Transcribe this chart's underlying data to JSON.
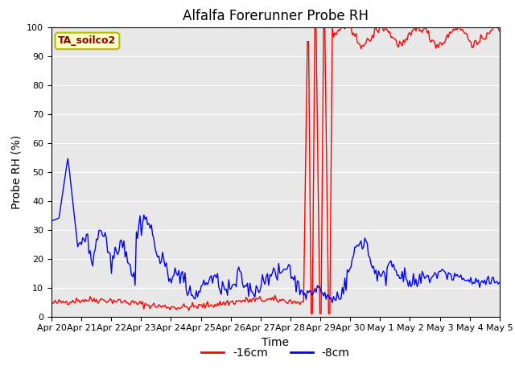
{
  "title": "Alfalfa Forerunner Probe RH",
  "xlabel": "Time",
  "ylabel": "Probe RH (%)",
  "ylim": [
    0,
    100
  ],
  "bg_color": "#e8e8e8",
  "fig_color": "#ffffff",
  "legend_label": "TA_soilco2",
  "series": [
    {
      "label": "-16cm",
      "color": "#ff0000"
    },
    {
      "label": "-8cm",
      "color": "#0000ff"
    }
  ],
  "xtick_labels": [
    "Apr 20",
    "Apr 21",
    "Apr 22",
    "Apr 23",
    "Apr 24",
    "Apr 25",
    "Apr 26",
    "Apr 27",
    "Apr 28",
    "Apr 29",
    "Apr 30",
    "May 1",
    "May 2",
    "May 3",
    "May 4",
    "May 5"
  ],
  "yticks": [
    0,
    10,
    20,
    30,
    40,
    50,
    60,
    70,
    80,
    90,
    100
  ],
  "title_fontsize": 12,
  "axis_fontsize": 10,
  "tick_fontsize": 8
}
